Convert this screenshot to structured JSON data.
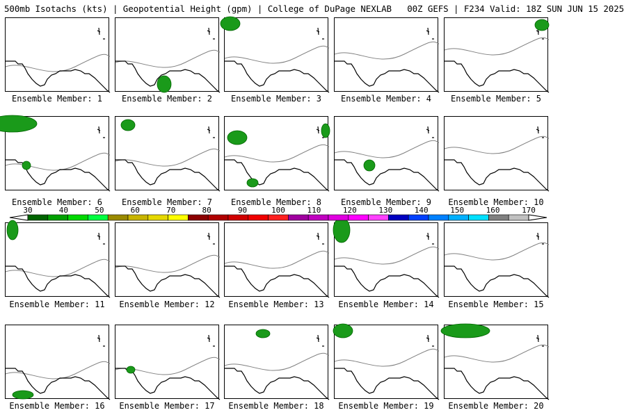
{
  "header": {
    "title": "500mb Isotachs (kts) | Geopotential Height (gpm) | College of DuPage NEXLAB   00Z GEFS | F234 Valid: 18Z SUN JUN 15 2025"
  },
  "members": [
    "Ensemble Member: 1",
    "Ensemble Member: 2",
    "Ensemble Member: 3",
    "Ensemble Member: 4",
    "Ensemble Member: 5",
    "Ensemble Member: 6",
    "Ensemble Member: 7",
    "Ensemble Member: 8",
    "Ensemble Member: 9",
    "Ensemble Member: 10",
    "Ensemble Member: 11",
    "Ensemble Member: 12",
    "Ensemble Member: 13",
    "Ensemble Member: 14",
    "Ensemble Member: 15",
    "Ensemble Member: 16",
    "Ensemble Member: 17",
    "Ensemble Member: 18",
    "Ensemble Member: 19",
    "Ensemble Member: 20"
  ],
  "colorbar": {
    "labels": [
      "30",
      "40",
      "50",
      "60",
      "70",
      "80",
      "90",
      "100",
      "110",
      "120",
      "130",
      "140",
      "150",
      "160",
      "170"
    ],
    "colors": [
      "#006400",
      "#00a000",
      "#00d800",
      "#00ff40",
      "#9a8a00",
      "#c8b400",
      "#e6d800",
      "#ffff00",
      "#8b0000",
      "#b00000",
      "#d00000",
      "#f00000",
      "#ff2020",
      "#a000a0",
      "#c000c0",
      "#e000e0",
      "#ff00ff",
      "#ff40ff",
      "#0000c0",
      "#0040ff",
      "#0080ff",
      "#00b0ff",
      "#00e0ff",
      "#808080",
      "#c0c0c0"
    ]
  }
}
